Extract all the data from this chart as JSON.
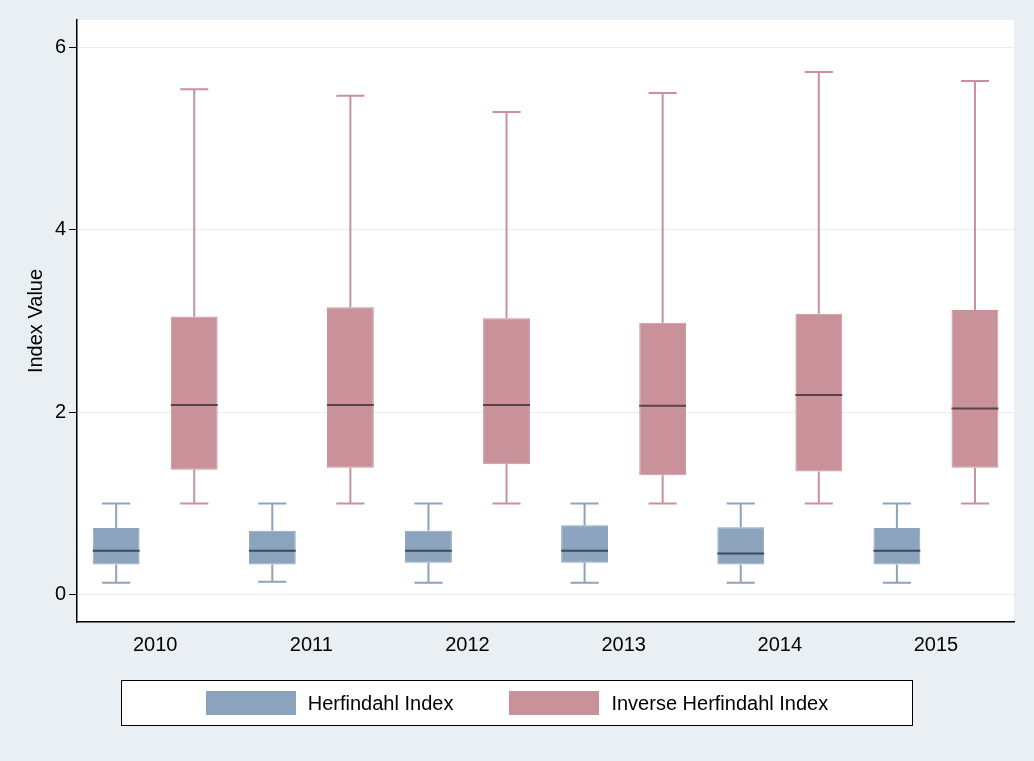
{
  "chart_data": {
    "type": "box",
    "ylabel": "Index Value",
    "categories": [
      "2010",
      "2011",
      "2012",
      "2013",
      "2014",
      "2015"
    ],
    "ylim": [
      -0.3,
      6.3
    ],
    "yticks": [
      0,
      2,
      4,
      6
    ],
    "grid": "y",
    "legend": "bottom",
    "series": [
      {
        "name": "Herfindahl Index",
        "color": "#8ba3bc",
        "boxes": [
          {
            "low": 0.13,
            "q1": 0.33,
            "median": 0.48,
            "q3": 0.73,
            "high": 1.0
          },
          {
            "low": 0.14,
            "q1": 0.33,
            "median": 0.48,
            "q3": 0.7,
            "high": 1.0
          },
          {
            "low": 0.13,
            "q1": 0.35,
            "median": 0.48,
            "q3": 0.7,
            "high": 1.0
          },
          {
            "low": 0.13,
            "q1": 0.35,
            "median": 0.48,
            "q3": 0.76,
            "high": 1.0
          },
          {
            "low": 0.13,
            "q1": 0.33,
            "median": 0.45,
            "q3": 0.74,
            "high": 1.0
          },
          {
            "low": 0.13,
            "q1": 0.33,
            "median": 0.48,
            "q3": 0.73,
            "high": 1.0
          }
        ]
      },
      {
        "name": "Inverse Herfindahl Index",
        "color": "#c9929a",
        "boxes": [
          {
            "low": 1.0,
            "q1": 1.37,
            "median": 2.08,
            "q3": 3.05,
            "high": 5.54
          },
          {
            "low": 1.0,
            "q1": 1.39,
            "median": 2.08,
            "q3": 3.15,
            "high": 5.47
          },
          {
            "low": 1.0,
            "q1": 1.43,
            "median": 2.08,
            "q3": 3.03,
            "high": 5.29
          },
          {
            "low": 1.0,
            "q1": 1.31,
            "median": 2.07,
            "q3": 2.98,
            "high": 5.5
          },
          {
            "low": 1.0,
            "q1": 1.35,
            "median": 2.19,
            "q3": 3.08,
            "high": 5.73
          },
          {
            "low": 1.0,
            "q1": 1.39,
            "median": 2.04,
            "q3": 3.12,
            "high": 5.63
          }
        ]
      }
    ]
  }
}
